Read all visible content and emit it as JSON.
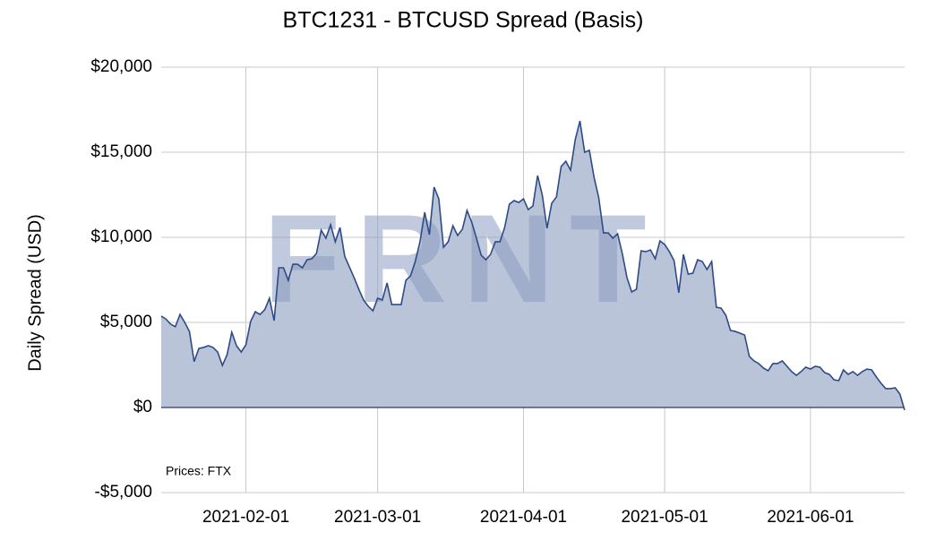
{
  "chart_data": {
    "type": "area",
    "title": "BTC1231 - BTCUSD Spread (Basis)",
    "y_label": "Daily Spread (USD)",
    "annotation": "Prices: FTX",
    "watermark": "FRNT",
    "color": "#2f4b85",
    "fill": "#b9c4d8",
    "grid": true,
    "xlim": [
      "2021-01-14",
      "2021-06-21"
    ],
    "xticks": [
      "2021-02-01",
      "2021-03-01",
      "2021-04-01",
      "2021-05-01",
      "2021-06-01"
    ],
    "ylim": [
      -5000,
      20000
    ],
    "yticks": [
      {
        "value": -5000,
        "label": "-$5,000"
      },
      {
        "value": 0,
        "label": "$0"
      },
      {
        "value": 5000,
        "label": "$5,000"
      },
      {
        "value": 10000,
        "label": "$10,000"
      },
      {
        "value": 15000,
        "label": "$15,000"
      },
      {
        "value": 20000,
        "label": "$20,000"
      }
    ],
    "x": [
      "2021-01-14",
      "2021-01-15",
      "2021-01-16",
      "2021-01-17",
      "2021-01-18",
      "2021-01-19",
      "2021-01-20",
      "2021-01-21",
      "2021-01-22",
      "2021-01-23",
      "2021-01-24",
      "2021-01-25",
      "2021-01-26",
      "2021-01-27",
      "2021-01-28",
      "2021-01-29",
      "2021-01-30",
      "2021-01-31",
      "2021-02-01",
      "2021-02-02",
      "2021-02-03",
      "2021-02-04",
      "2021-02-05",
      "2021-02-06",
      "2021-02-07",
      "2021-02-08",
      "2021-02-09",
      "2021-02-10",
      "2021-02-11",
      "2021-02-12",
      "2021-02-13",
      "2021-02-14",
      "2021-02-15",
      "2021-02-16",
      "2021-02-17",
      "2021-02-18",
      "2021-02-19",
      "2021-02-20",
      "2021-02-21",
      "2021-02-22",
      "2021-02-23",
      "2021-02-24",
      "2021-02-25",
      "2021-02-26",
      "2021-02-27",
      "2021-02-28",
      "2021-03-01",
      "2021-03-02",
      "2021-03-03",
      "2021-03-04",
      "2021-03-05",
      "2021-03-06",
      "2021-03-07",
      "2021-03-08",
      "2021-03-09",
      "2021-03-10",
      "2021-03-11",
      "2021-03-12",
      "2021-03-13",
      "2021-03-14",
      "2021-03-15",
      "2021-03-16",
      "2021-03-17",
      "2021-03-18",
      "2021-03-19",
      "2021-03-20",
      "2021-03-21",
      "2021-03-22",
      "2021-03-23",
      "2021-03-24",
      "2021-03-25",
      "2021-03-26",
      "2021-03-27",
      "2021-03-28",
      "2021-03-29",
      "2021-03-30",
      "2021-03-31",
      "2021-04-01",
      "2021-04-02",
      "2021-04-03",
      "2021-04-04",
      "2021-04-05",
      "2021-04-06",
      "2021-04-07",
      "2021-04-08",
      "2021-04-09",
      "2021-04-10",
      "2021-04-11",
      "2021-04-12",
      "2021-04-13",
      "2021-04-14",
      "2021-04-15",
      "2021-04-16",
      "2021-04-17",
      "2021-04-18",
      "2021-04-19",
      "2021-04-20",
      "2021-04-21",
      "2021-04-22",
      "2021-04-23",
      "2021-04-24",
      "2021-04-25",
      "2021-04-26",
      "2021-04-27",
      "2021-04-28",
      "2021-04-29",
      "2021-04-30",
      "2021-05-01",
      "2021-05-02",
      "2021-05-03",
      "2021-05-04",
      "2021-05-05",
      "2021-05-06",
      "2021-05-07",
      "2021-05-08",
      "2021-05-09",
      "2021-05-10",
      "2021-05-11",
      "2021-05-12",
      "2021-05-13",
      "2021-05-14",
      "2021-05-15",
      "2021-05-16",
      "2021-05-17",
      "2021-05-18",
      "2021-05-19",
      "2021-05-20",
      "2021-05-21",
      "2021-05-22",
      "2021-05-23",
      "2021-05-24",
      "2021-05-25",
      "2021-05-26",
      "2021-05-27",
      "2021-05-28",
      "2021-05-29",
      "2021-05-30",
      "2021-05-31",
      "2021-06-01",
      "2021-06-02",
      "2021-06-03",
      "2021-06-04",
      "2021-06-05",
      "2021-06-06",
      "2021-06-07",
      "2021-06-08",
      "2021-06-09",
      "2021-06-10",
      "2021-06-11",
      "2021-06-12",
      "2021-06-13",
      "2021-06-14",
      "2021-06-15",
      "2021-06-16",
      "2021-06-17",
      "2021-06-18",
      "2021-06-19",
      "2021-06-20",
      "2021-06-21"
    ],
    "values": [
      5370,
      5200,
      4900,
      4750,
      5470,
      5000,
      4470,
      2700,
      3470,
      3530,
      3630,
      3530,
      3260,
      2470,
      3100,
      4420,
      3630,
      3260,
      3680,
      5050,
      5630,
      5470,
      5740,
      6420,
      5100,
      8210,
      8210,
      7470,
      8420,
      8420,
      8210,
      8680,
      8740,
      9050,
      10420,
      9950,
      10740,
      9740,
      10580,
      8890,
      8260,
      7630,
      6950,
      6320,
      5950,
      5680,
      6420,
      6320,
      7320,
      6050,
      6050,
      6050,
      7470,
      7740,
      8580,
      9740,
      11470,
      10160,
      12950,
      12260,
      9420,
      9740,
      10680,
      10110,
      10470,
      11580,
      10890,
      9950,
      8950,
      8680,
      9000,
      9740,
      9740,
      10580,
      11950,
      12160,
      12050,
      12260,
      11630,
      11840,
      13630,
      12470,
      10530,
      12000,
      12370,
      14160,
      14470,
      13950,
      15740,
      16840,
      15000,
      15110,
      13530,
      12320,
      10260,
      10260,
      9950,
      10210,
      9050,
      7630,
      6790,
      6950,
      9210,
      9160,
      9260,
      8740,
      9790,
      9580,
      9160,
      8630,
      6740,
      9000,
      7840,
      7890,
      8680,
      8580,
      8110,
      8580,
      5890,
      5840,
      5420,
      4530,
      4470,
      4370,
      4260,
      3000,
      2740,
      2580,
      2320,
      2160,
      2580,
      2580,
      2740,
      2420,
      2110,
      1890,
      2110,
      2370,
      2260,
      2420,
      2370,
      2050,
      1950,
      1630,
      1580,
      2210,
      1950,
      2110,
      1890,
      2110,
      2260,
      2210,
      1790,
      1420,
      1110,
      1110,
      1160,
      790,
      -150
    ]
  }
}
